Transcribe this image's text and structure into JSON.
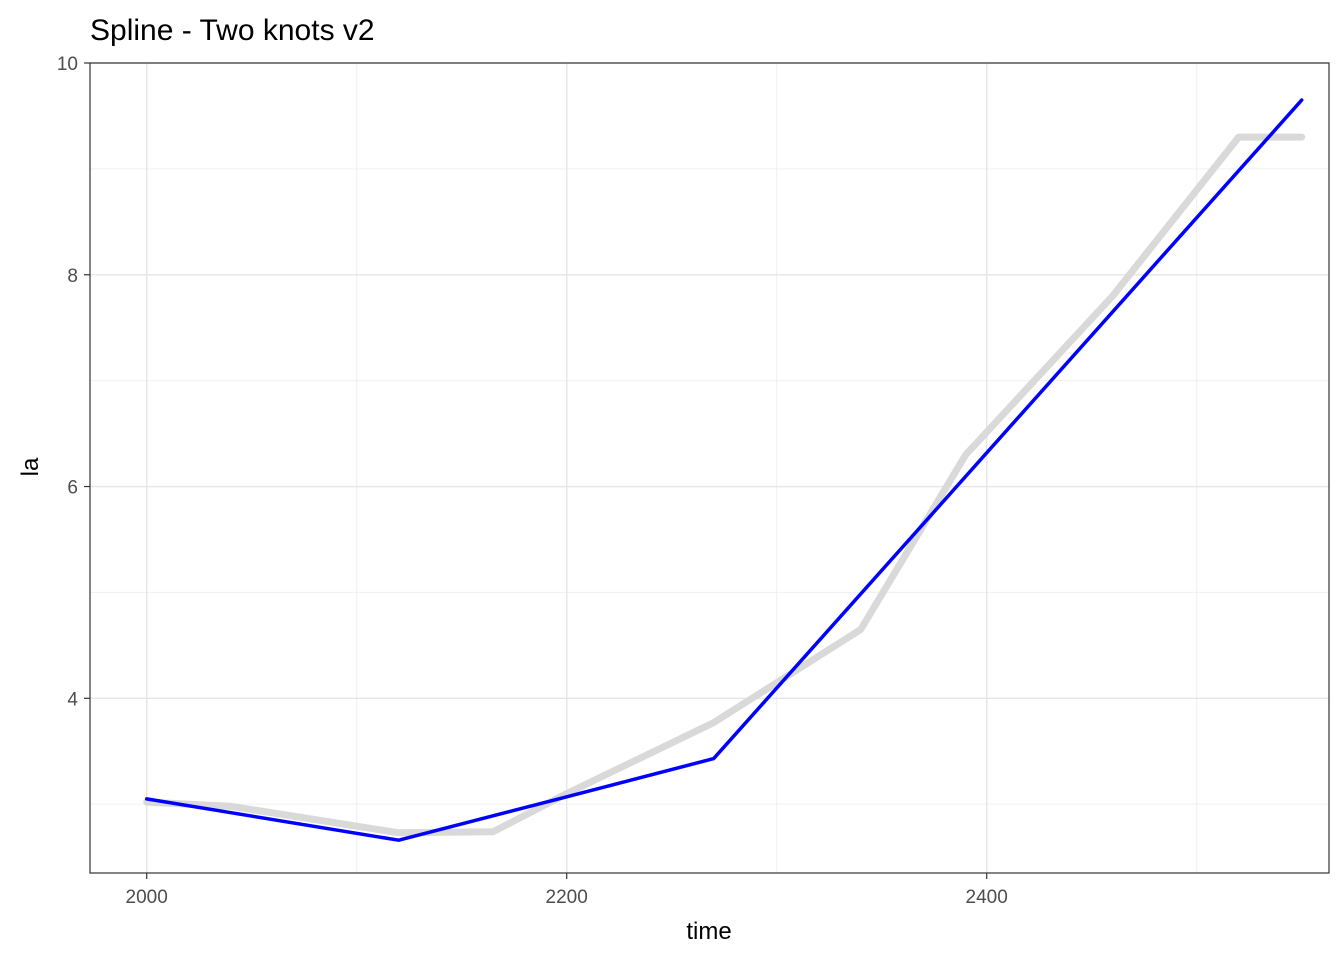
{
  "chart_data": {
    "type": "line",
    "title": "Spline - Two knots v2",
    "xlabel": "time",
    "ylabel": "la",
    "xlim": [
      1973,
      2563
    ],
    "ylim": [
      2.35,
      10.0
    ],
    "x_ticks": [
      2000,
      2200,
      2400
    ],
    "y_ticks": [
      4,
      6,
      8,
      10
    ],
    "x_minor_ticks": [
      2100,
      2300,
      2500
    ],
    "y_minor_ticks": [
      3,
      5,
      7,
      9
    ],
    "grid": true,
    "legend": "none",
    "series": [
      {
        "color": "#d9d9d9",
        "x": [
          2000,
          2040,
          2120,
          2165,
          2200,
          2270,
          2340,
          2390,
          2460,
          2520,
          2550
        ],
        "y": [
          3.02,
          2.98,
          2.73,
          2.74,
          3.1,
          3.77,
          4.65,
          6.3,
          7.8,
          9.3,
          9.3
        ]
      },
      {
        "color": "#0000ff",
        "x": [
          2000,
          2120,
          2200,
          2270,
          2550
        ],
        "y": [
          3.05,
          2.66,
          3.07,
          3.43,
          9.65
        ]
      }
    ]
  }
}
